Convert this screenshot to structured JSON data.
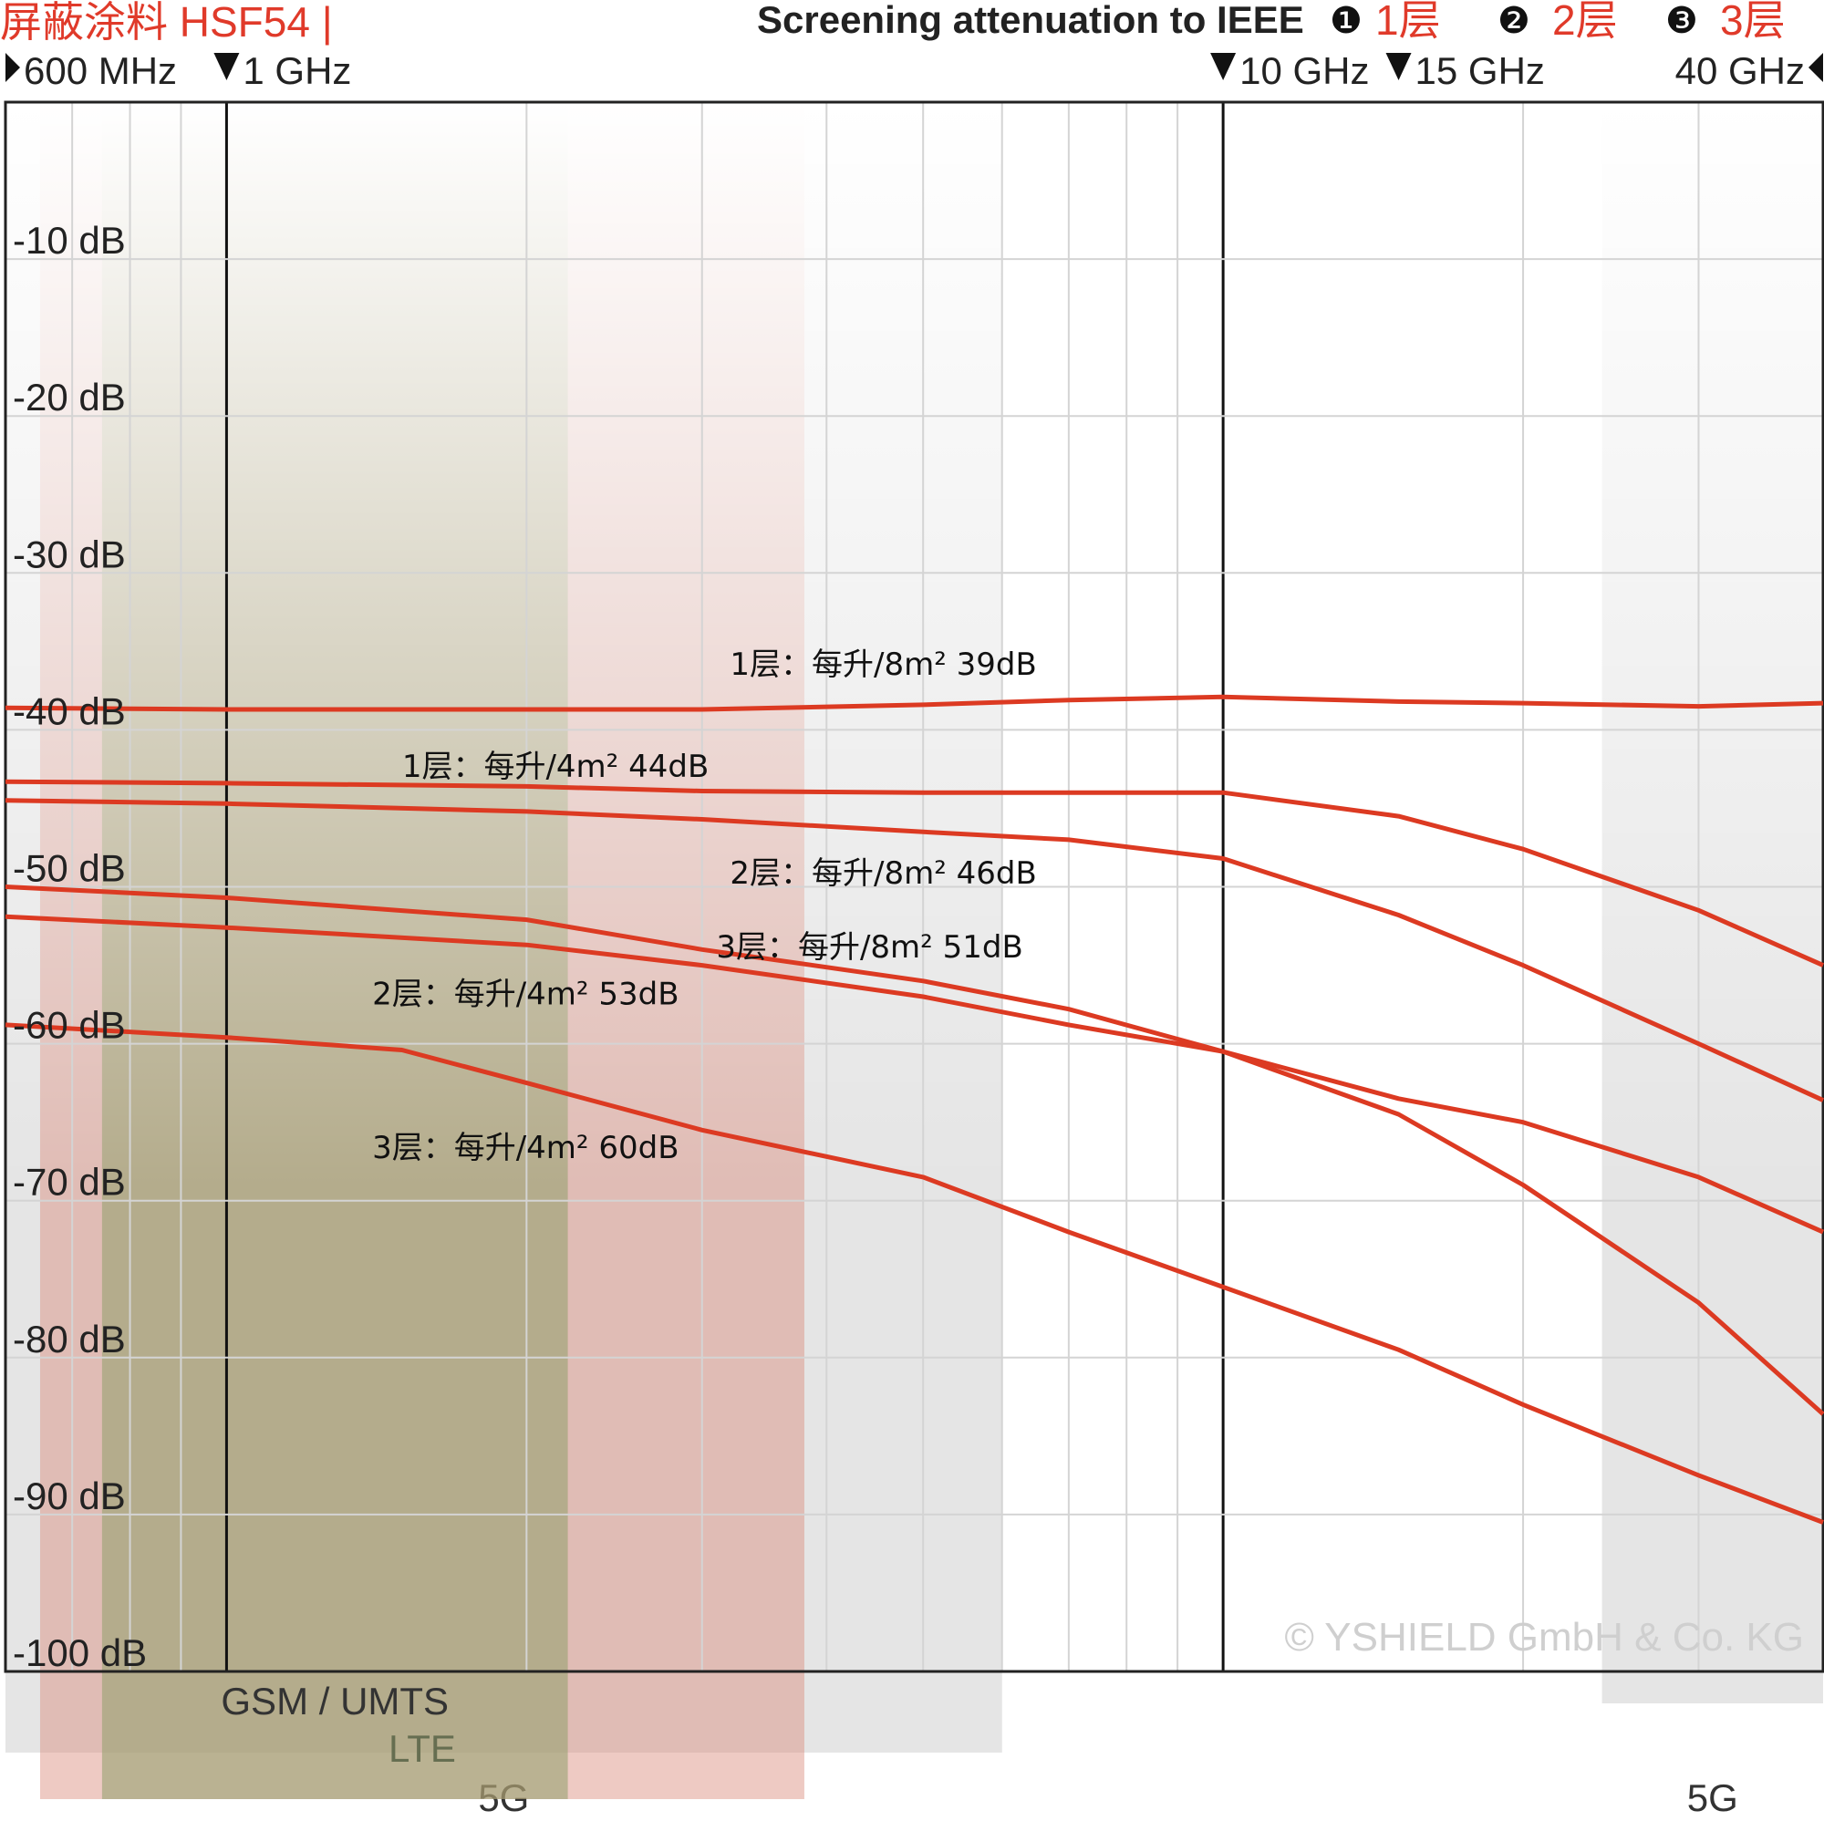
{
  "header": {
    "product_title": "屏蔽涂料 HSF54 |",
    "subtitle": "Screening attenuation to IEEE",
    "legend": [
      {
        "marker": "❶",
        "label": "1层"
      },
      {
        "marker": "❷",
        "label": "2层"
      },
      {
        "marker": "❸",
        "label": "3层"
      }
    ],
    "colors": {
      "accent": "#e03a2a",
      "line": "#dc3a22",
      "text": "#222222"
    }
  },
  "freq_ticks": [
    {
      "label": "600 MHz",
      "freq": 0.6,
      "marker": "right-triangle"
    },
    {
      "label": "1 GHz",
      "freq": 1,
      "marker": "down-triangle"
    },
    {
      "label": "10 GHz",
      "freq": 10,
      "marker": "down-triangle"
    },
    {
      "label": "15 GHz",
      "freq": 15,
      "marker": "down-triangle"
    },
    {
      "label": "40 GHz",
      "freq": 40,
      "marker": "left-triangle"
    }
  ],
  "y_ticks": [
    "-10 dB",
    "-20 dB",
    "-30 dB",
    "-40 dB",
    "-50 dB",
    "-60 dB",
    "-70 dB",
    "-80 dB",
    "-90 dB",
    "-100 dB"
  ],
  "bands": [
    {
      "label": "GSM / UMTS",
      "from_ghz": 0.75,
      "to_ghz": 2.2,
      "color": "#8f9f6a"
    },
    {
      "label": "LTE",
      "from_ghz": 0.65,
      "to_ghz": 3.8,
      "color": "#d98a7a"
    },
    {
      "label": "5G",
      "from_ghz": 0.6,
      "to_ghz": 6.0,
      "color": "#cfcfcf"
    },
    {
      "label": "5G",
      "from_ghz": 24.0,
      "to_ghz": 40.0,
      "color": "#cfcfcf"
    }
  ],
  "copyright": "© YSHIELD GmbH & Co. KG",
  "chart_data": {
    "type": "line",
    "x_scale": "log",
    "xlim": [
      0.6,
      40
    ],
    "ylim": [
      -100,
      0
    ],
    "x_unit": "GHz",
    "y_unit": "dB",
    "grid": true,
    "series": [
      {
        "name": "1层：每升/8m²  39dB",
        "label_at": [
          3.2,
          -36.5
        ],
        "x": [
          0.6,
          1,
          2,
          3,
          5,
          7,
          10,
          15,
          20,
          30,
          40
        ],
        "y": [
          -38.6,
          -38.7,
          -38.7,
          -38.7,
          -38.4,
          -38.1,
          -37.9,
          -38.2,
          -38.3,
          -38.5,
          -38.3
        ]
      },
      {
        "name": "1层：每升/4m²   44dB",
        "label_at": [
          1.5,
          -43.0
        ],
        "x": [
          0.6,
          1,
          2,
          3,
          5,
          7,
          10,
          15,
          20,
          30,
          40
        ],
        "y": [
          -43.3,
          -43.4,
          -43.6,
          -43.9,
          -44.0,
          -44.0,
          -44.0,
          -45.5,
          -47.6,
          -51.5,
          -55.0
        ]
      },
      {
        "name": "2层：每升/8m² 46dB",
        "label_at": [
          3.2,
          -49.8
        ],
        "x": [
          0.6,
          1,
          2,
          3,
          5,
          7,
          10,
          15,
          20,
          30,
          40
        ],
        "y": [
          -44.5,
          -44.7,
          -45.2,
          -45.7,
          -46.5,
          -47.0,
          -48.2,
          -51.8,
          -55.0,
          -60.0,
          -63.6
        ]
      },
      {
        "name": "3层：每升/8m² 51dB",
        "label_at": [
          3.1,
          -54.5
        ],
        "x": [
          0.6,
          1,
          2,
          3,
          5,
          7,
          10,
          15,
          20,
          30,
          40
        ],
        "y": [
          -50.0,
          -50.7,
          -52.1,
          -54.0,
          -56.0,
          -57.8,
          -60.5,
          -64.5,
          -69.0,
          -76.5,
          -83.6
        ]
      },
      {
        "name": "2层：每升/4m² 53dB",
        "label_at": [
          1.4,
          -57.5
        ],
        "x": [
          0.6,
          1,
          2,
          3,
          5,
          7,
          10,
          15,
          20,
          30,
          40
        ],
        "y": [
          -51.9,
          -52.6,
          -53.7,
          -55.0,
          -57.0,
          -58.8,
          -60.5,
          -63.5,
          -65.0,
          -68.5,
          -72.0
        ]
      },
      {
        "name": "3层：每升/4m²  60dB",
        "label_at": [
          1.4,
          -67.3
        ],
        "x": [
          0.6,
          1,
          1.5,
          2,
          3,
          5,
          7,
          10,
          15,
          20,
          30,
          40
        ],
        "y": [
          -58.8,
          -59.6,
          -60.4,
          -62.5,
          -65.5,
          -68.5,
          -72.0,
          -75.5,
          -79.5,
          -83.0,
          -87.5,
          -90.5
        ]
      }
    ]
  }
}
